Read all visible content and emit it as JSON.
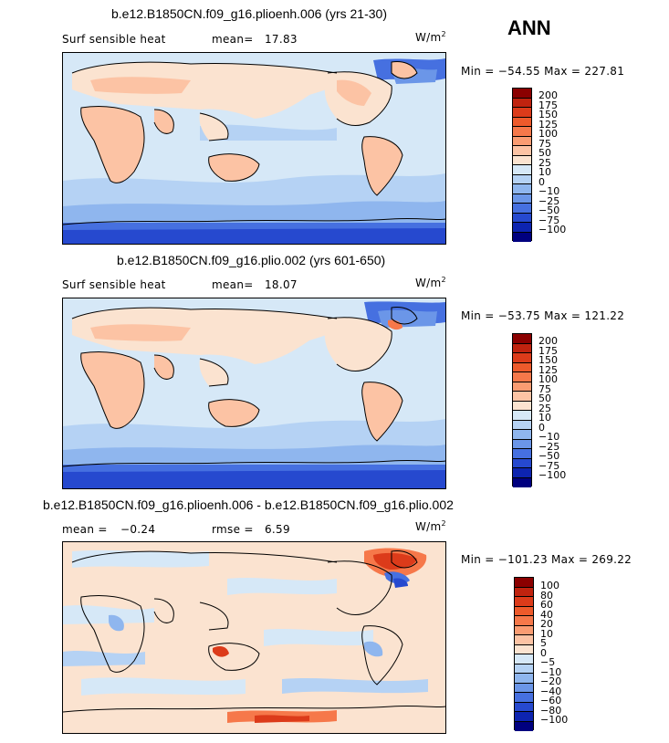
{
  "season": "ANN",
  "panels": [
    {
      "title": "b.e12.B1850CN.f09_g16.plioenh.006 (yrs 21-30)",
      "left_label": "Surf sensible heat",
      "stat_label": "mean=",
      "stat_value": "17.83",
      "units": "W/m",
      "units_exp": "2",
      "minmax": "Min = −54.55 Max = 227.81",
      "colorbar_labels": [
        "200",
        "175",
        "150",
        "125",
        "100",
        "75",
        "50",
        "25",
        "10",
        "0",
        "−10",
        "−25",
        "−50",
        "−75",
        "−100"
      ],
      "colorbar_colors": [
        "#8b0000",
        "#c0230f",
        "#dc3b1a",
        "#ee5a2b",
        "#f6784a",
        "#fa9c72",
        "#fcc3a4",
        "#fbe3d0",
        "#d6e8f7",
        "#b5d2f4",
        "#8fb6ee",
        "#6b96e8",
        "#4670e0",
        "#2649cf",
        "#0d24b0",
        "#00007f"
      ]
    },
    {
      "title": "b.e12.B1850CN.f09_g16.plio.002 (yrs 601-650)",
      "left_label": "Surf sensible heat",
      "stat_label": "mean=",
      "stat_value": "18.07",
      "units": "W/m",
      "units_exp": "2",
      "minmax": "Min = −53.75 Max = 121.22",
      "colorbar_labels": [
        "200",
        "175",
        "150",
        "125",
        "100",
        "75",
        "50",
        "25",
        "10",
        "0",
        "−10",
        "−25",
        "−50",
        "−75",
        "−100"
      ],
      "colorbar_colors": [
        "#8b0000",
        "#c0230f",
        "#dc3b1a",
        "#ee5a2b",
        "#f6784a",
        "#fa9c72",
        "#fcc3a4",
        "#fbe3d0",
        "#d6e8f7",
        "#b5d2f4",
        "#8fb6ee",
        "#6b96e8",
        "#4670e0",
        "#2649cf",
        "#0d24b0",
        "#00007f"
      ]
    },
    {
      "title": "b.e12.B1850CN.f09_g16.plioenh.006 - b.e12.B1850CN.f09_g16.plio.002",
      "left_label": "mean =",
      "left_value": "−0.24",
      "stat_label": "rmse =",
      "stat_value": "6.59",
      "units": "W/m",
      "units_exp": "2",
      "minmax": "Min = −101.23 Max = 269.22",
      "colorbar_labels": [
        "100",
        "80",
        "60",
        "40",
        "20",
        "10",
        "5",
        "0",
        "−5",
        "−10",
        "−20",
        "−40",
        "−60",
        "−80",
        "−100"
      ],
      "colorbar_colors": [
        "#8b0000",
        "#c0230f",
        "#dc3b1a",
        "#ee5a2b",
        "#f6784a",
        "#fa9c72",
        "#fcc3a4",
        "#fbe3d0",
        "#d6e8f7",
        "#b5d2f4",
        "#8fb6ee",
        "#6b96e8",
        "#4670e0",
        "#2649cf",
        "#0d24b0",
        "#00007f"
      ]
    }
  ]
}
